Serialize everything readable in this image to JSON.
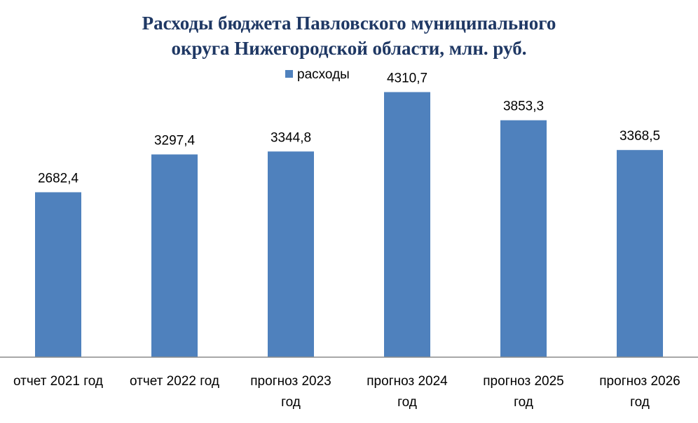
{
  "chart_data": {
    "type": "bar",
    "title_lines": [
      "Расходы бюджета Павловского муниципального",
      "округа Нижегородской области, млн. руб."
    ],
    "legend_position": "top",
    "categories": [
      [
        "отчет 2021 год"
      ],
      [
        "отчет 2022 год"
      ],
      [
        "прогноз 2023",
        "год"
      ],
      [
        "прогноз 2024",
        "год"
      ],
      [
        "прогноз 2025",
        "год"
      ],
      [
        "прогноз 2026",
        "год"
      ]
    ],
    "series": [
      {
        "name": "расходы",
        "values": [
          2682.4,
          3297.4,
          3344.8,
          4310.7,
          3853.3,
          3368.5
        ],
        "value_labels": [
          "2682,4",
          "3297,4",
          "3344,8",
          "4310,7",
          "3853,3",
          "3368,5"
        ],
        "color": "#4f81bd"
      }
    ],
    "ylim": [
      0,
      5000
    ],
    "grid": false,
    "colors": {
      "title": "#1f3864",
      "bar": "#4f81bd",
      "axis": "#8c8c8c"
    }
  }
}
